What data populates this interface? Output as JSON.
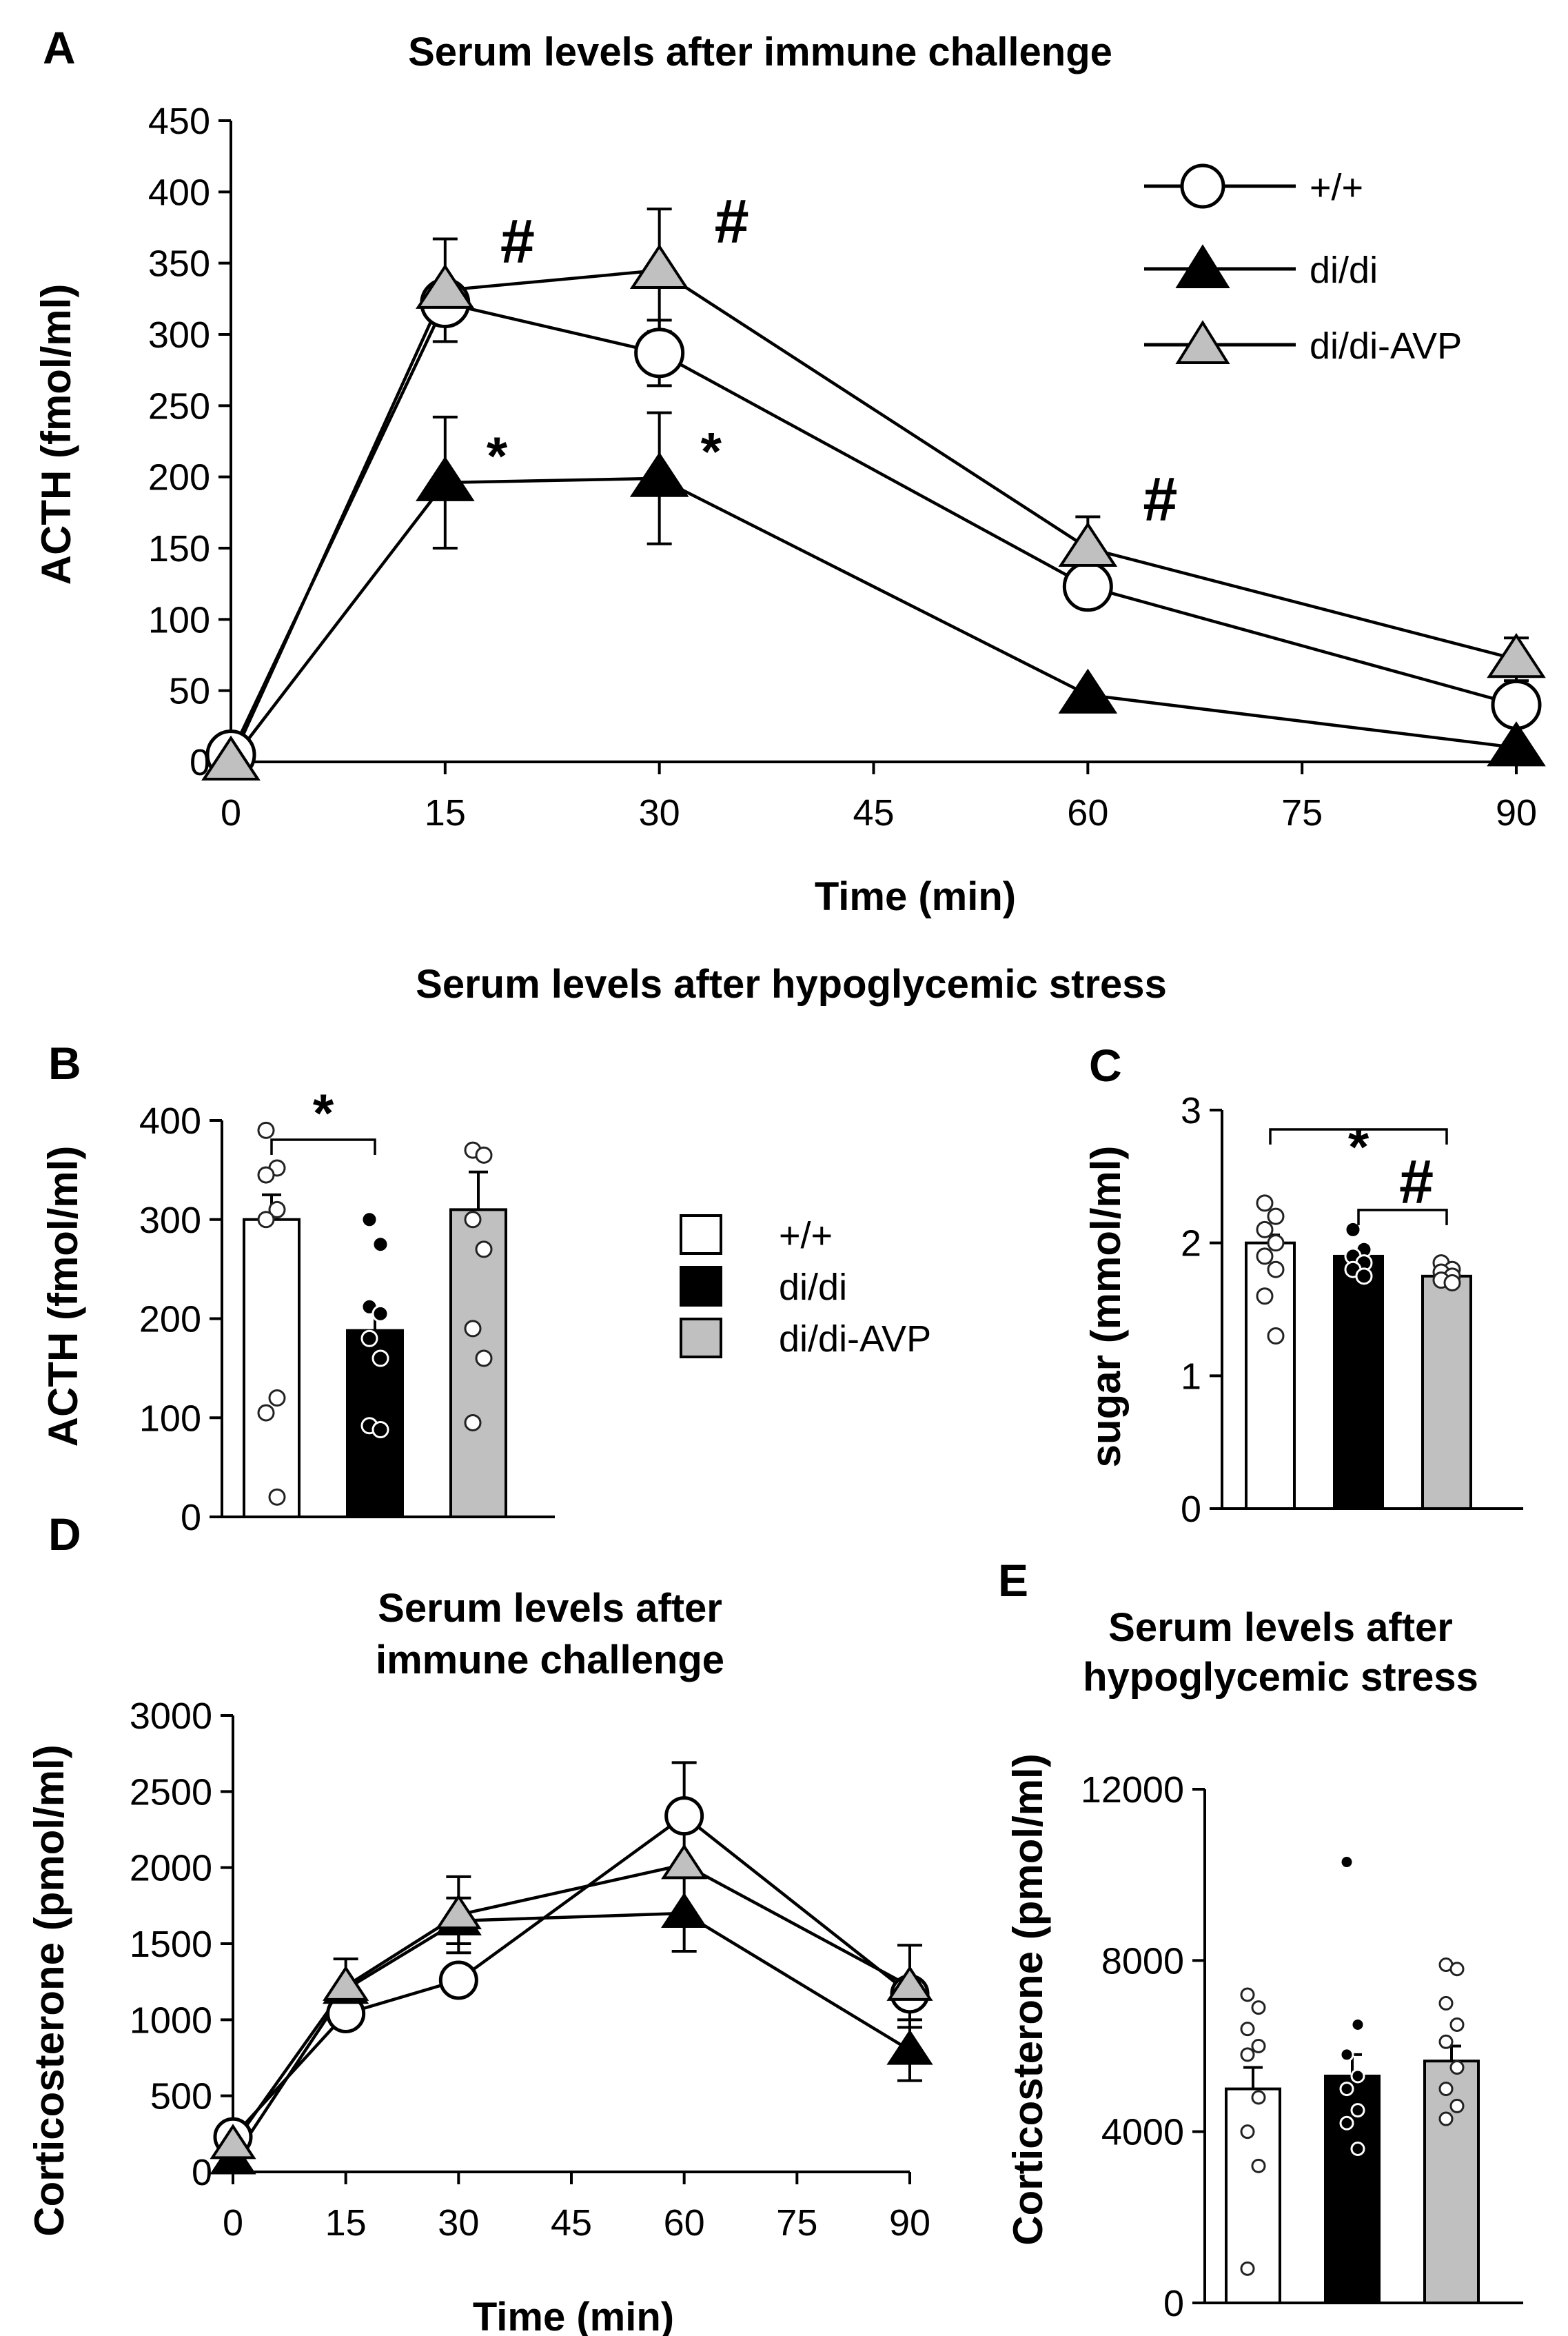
{
  "chart_data": [
    {
      "panel": "A",
      "type": "line",
      "title": "Serum levels after immune challenge",
      "xlabel": "Time (min)",
      "ylabel": "ACTH (fmol/ml)",
      "xlim": [
        0,
        90
      ],
      "ylim": [
        0,
        450
      ],
      "xticks": [
        "0",
        "15",
        "30",
        "45",
        "60",
        "75",
        "90"
      ],
      "yticks": [
        "0",
        "50",
        "100",
        "150",
        "200",
        "250",
        "300",
        "350",
        "400",
        "450"
      ],
      "x": [
        0,
        15,
        30,
        60,
        90
      ],
      "series": [
        {
          "name": "+/+",
          "marker": "circle-open",
          "values": [
            5,
            322,
            287,
            123,
            40
          ],
          "err": [
            0,
            0,
            23,
            0,
            0
          ]
        },
        {
          "name": "di/di",
          "marker": "triangle-black",
          "values": [
            0,
            196,
            199,
            47,
            10
          ],
          "err": [
            0,
            46,
            46,
            0,
            0
          ]
        },
        {
          "name": "di/di-AVP",
          "marker": "triangle-gray",
          "values": [
            0,
            331,
            345,
            150,
            72
          ],
          "err": [
            0,
            36,
            43,
            22,
            15
          ]
        }
      ],
      "annotations": [
        {
          "text": "#",
          "x": 15,
          "series": "di/di-AVP"
        },
        {
          "text": "#",
          "x": 30,
          "series": "di/di-AVP"
        },
        {
          "text": "#",
          "x": 60,
          "series": "di/di-AVP"
        },
        {
          "text": "*",
          "x": 15,
          "series": "di/di"
        },
        {
          "text": "*",
          "x": 30,
          "series": "di/di"
        }
      ]
    },
    {
      "panel": "B",
      "type": "bar",
      "title": "Serum levels after hypoglycemic stress",
      "xlabel": "",
      "ylabel": "ACTH (fmol/ml)",
      "ylim": [
        0,
        400
      ],
      "yticks": [
        "0",
        "100",
        "200",
        "300",
        "400"
      ],
      "categories": [
        "+/+",
        "di/di",
        "di/di-AVP"
      ],
      "values": [
        300,
        188,
        310
      ],
      "err": [
        25,
        20,
        38
      ],
      "points": [
        [
          390,
          352,
          345,
          310,
          300,
          120,
          105,
          20
        ],
        [
          300,
          275,
          212,
          205,
          180,
          160,
          92,
          88
        ],
        [
          370,
          365,
          300,
          270,
          190,
          160,
          95
        ]
      ],
      "annotations": [
        {
          "text": "*",
          "between": [
            "+/+",
            "di/di"
          ]
        }
      ]
    },
    {
      "panel": "C",
      "type": "bar",
      "xlabel": "",
      "ylabel": "sugar (mmol/ml)",
      "ylim": [
        0,
        3
      ],
      "yticks": [
        "0",
        "1",
        "2",
        "3"
      ],
      "categories": [
        "+/+",
        "di/di",
        "di/di-AVP"
      ],
      "values": [
        2.0,
        1.9,
        1.75
      ],
      "err": [
        0.06,
        0.04,
        0.03
      ],
      "points": [
        [
          2.3,
          2.2,
          2.1,
          2.0,
          1.9,
          1.8,
          1.6,
          1.3
        ],
        [
          2.1,
          1.95,
          1.9,
          1.85,
          1.8,
          1.75
        ],
        [
          1.85,
          1.8,
          1.78,
          1.75,
          1.72,
          1.7
        ]
      ],
      "annotations": [
        {
          "text": "*",
          "between": [
            "+/+",
            "di/di-AVP"
          ]
        },
        {
          "text": "#",
          "between": [
            "di/di",
            "di/di-AVP"
          ]
        }
      ]
    },
    {
      "panel": "D",
      "type": "line",
      "title": "Serum levels after immune challenge",
      "xlabel": "Time (min)",
      "ylabel": "Corticosterone  (pmol/ml)",
      "xlim": [
        0,
        90
      ],
      "ylim": [
        0,
        3000
      ],
      "xticks": [
        "0",
        "15",
        "30",
        "45",
        "60",
        "75",
        "90"
      ],
      "yticks": [
        "0",
        "500",
        "1000",
        "1500",
        "2000",
        "2500",
        "3000"
      ],
      "x": [
        0,
        15,
        30,
        60,
        90
      ],
      "series": [
        {
          "name": "+/+",
          "marker": "circle-open",
          "values": [
            230,
            1040,
            1260,
            2340,
            1170
          ],
          "err": [
            0,
            0,
            0,
            350,
            0
          ]
        },
        {
          "name": "di/di",
          "marker": "triangle-black",
          "values": [
            80,
            1200,
            1650,
            1700,
            800
          ],
          "err": [
            0,
            0,
            150,
            250,
            200
          ]
        },
        {
          "name": "di/di-AVP",
          "marker": "triangle-gray",
          "values": [
            180,
            1220,
            1690,
            2020,
            1220
          ],
          "err": [
            0,
            180,
            250,
            0,
            270
          ]
        }
      ]
    },
    {
      "panel": "E",
      "type": "bar",
      "title": "Serum levels after hypoglycemic stress",
      "xlabel": "",
      "ylabel": "Corticosterone  (pmol/ml)",
      "ylim": [
        0,
        12000
      ],
      "yticks": [
        "0",
        "4000",
        "8000",
        "12000"
      ],
      "categories": [
        "+/+",
        "di/di",
        "di/di-AVP"
      ],
      "values": [
        5000,
        5300,
        5650
      ],
      "err": [
        500,
        500,
        350
      ],
      "points": [
        [
          7200,
          6900,
          6400,
          6000,
          5800,
          4800,
          4000,
          3200,
          800
        ],
        [
          10300,
          6500,
          5800,
          5300,
          5000,
          4500,
          4200,
          3600
        ],
        [
          7900,
          7800,
          7000,
          6500,
          6100,
          5500,
          5000,
          4600,
          4300
        ]
      ]
    }
  ],
  "labels": {
    "panel_a": "A",
    "panel_b": "B",
    "panel_c": "C",
    "panel_d": "D",
    "panel_e": "E",
    "title_a": "Serum levels after immune challenge",
    "title_bc": "Serum levels after hypoglycemic stress",
    "title_d1": "Serum levels after",
    "title_d2": "immune challenge",
    "title_e1": "Serum levels after",
    "title_e2": "hypoglycemic  stress"
  },
  "legend": {
    "wt": "+/+",
    "didi": "di/di",
    "avp": "di/di-AVP"
  },
  "colors": {
    "wt": "#ffffff",
    "didi": "#000000",
    "avp": "#c0c0c0",
    "stroke": "#000000"
  }
}
